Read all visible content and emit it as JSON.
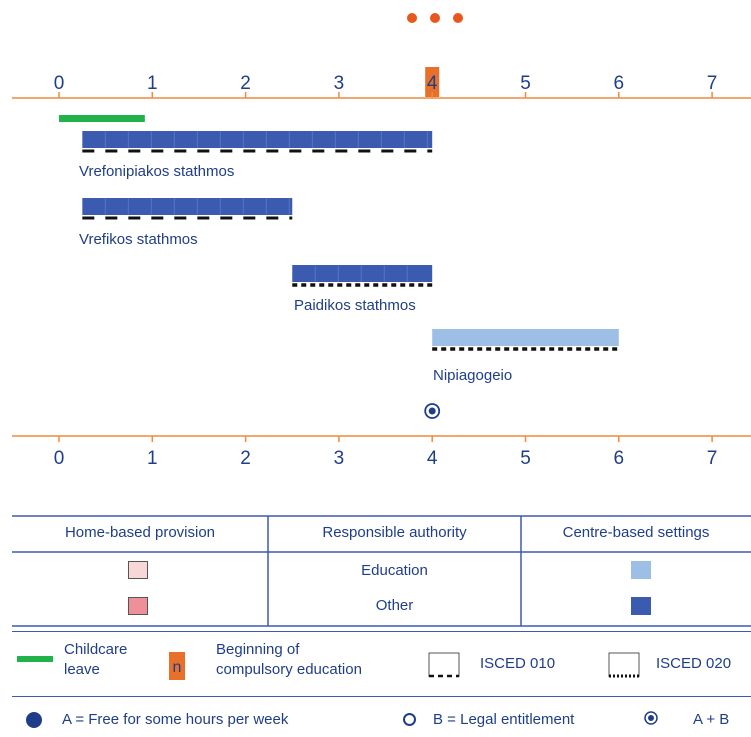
{
  "colors": {
    "axis": "#f08a3c",
    "text": "#1f3e8a",
    "other_bar": "#3b5bb0",
    "education_bar": "#9dbfe6",
    "childcare": "#22b24c",
    "compulsory": "#e8702a",
    "home_education": "#f7d7d7",
    "home_other": "#ef8f98",
    "dots": "#e8581e"
  },
  "axis_ticks": [
    "0",
    "1",
    "2",
    "3",
    "4",
    "5",
    "6",
    "7"
  ],
  "compulsory_age": 4,
  "childcare_leave": {
    "from": 0,
    "to": 0.92
  },
  "bars": [
    {
      "label": "Vrefonipiakos stathmos",
      "from": 0.25,
      "to": 4,
      "authority": "Other",
      "isced": "010"
    },
    {
      "label": "Vrefikos stathmos",
      "from": 0.25,
      "to": 2.5,
      "authority": "Other",
      "isced": "010"
    },
    {
      "label": "Paidikos stathmos",
      "from": 2.5,
      "to": 4,
      "authority": "Other",
      "isced": "020"
    },
    {
      "label": "Nipiagogeio",
      "from": 4,
      "to": 6,
      "authority": "Education",
      "isced": "020"
    }
  ],
  "entitlement_marker": {
    "age": 4,
    "type": "A + B"
  },
  "legend": {
    "headers": [
      "Home-based provision",
      "Responsible authority",
      "Centre-based settings"
    ],
    "rows": [
      "Education",
      "Other"
    ],
    "childcare_leave": [
      "Childcare",
      "leave"
    ],
    "compulsory_box": "n",
    "compulsory_label": [
      "Beginning of",
      "compulsory education"
    ],
    "isced010": "ISCED 010",
    "isced020": "ISCED 020",
    "free_hours": "A = Free for some hours per week",
    "legal": "B = Legal entitlement",
    "both": "A + B"
  }
}
